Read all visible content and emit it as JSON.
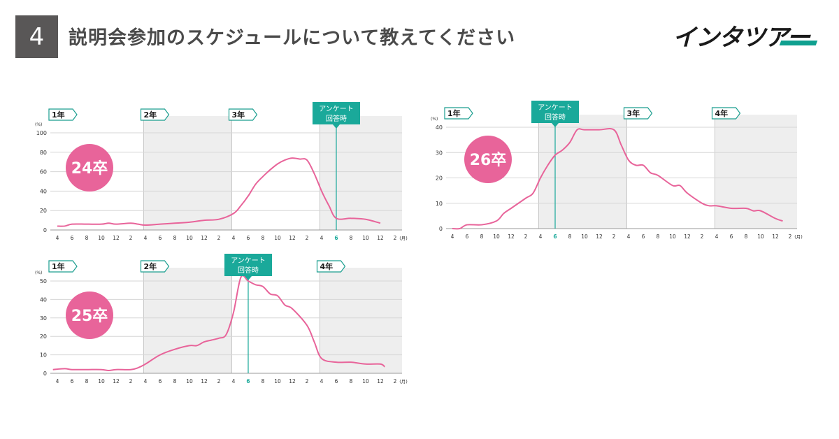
{
  "header": {
    "question_number": "4",
    "title": "説明会参加のスケジュールについて教えてください",
    "logo_text": "インタツアー"
  },
  "colors": {
    "line": "#e8649a",
    "badge": "#e8649a",
    "accent": "#1aa99a",
    "shade": "#eeeeee",
    "year_label": "#1a9e8f"
  },
  "chart_data": [
    {
      "type": "line",
      "cohort": "24卒",
      "y_unit": "(%)",
      "x_unit": "(月)",
      "ylim": [
        0,
        100
      ],
      "yticks": [
        0,
        20,
        40,
        60,
        80,
        100
      ],
      "x_months": [
        "4",
        "6",
        "8",
        "10",
        "12",
        "2",
        "4",
        "6",
        "8",
        "10",
        "12",
        "2",
        "4",
        "6",
        "8",
        "10",
        "12",
        "2",
        "4",
        "6",
        "8",
        "10",
        "12",
        "2"
      ],
      "highlight_tick": 19,
      "year_markers": [
        {
          "label": "1年",
          "tick": 0
        },
        {
          "label": "2年",
          "tick": 6
        },
        {
          "label": "3年",
          "tick": 12
        },
        {
          "label": "4年",
          "tick": 18
        }
      ],
      "survey_marker": {
        "label_1": "アンケート",
        "label_2": "回答時",
        "tick": 19
      },
      "shaded_years": [
        1,
        3
      ],
      "series": [
        {
          "x": [
            0,
            0.5,
            1,
            2,
            3,
            3.5,
            4,
            5,
            5.5,
            6,
            7,
            8,
            9,
            10,
            11,
            12,
            12.5,
            13,
            13.5,
            14,
            14.5,
            15,
            15.5,
            16,
            16.5,
            17,
            17.5,
            18,
            18.5,
            19,
            20,
            21,
            22
          ],
          "y": [
            4,
            4,
            6,
            6,
            6,
            7,
            6,
            7,
            6,
            5,
            6,
            7,
            8,
            10,
            11,
            17,
            25,
            35,
            47,
            55,
            62,
            68,
            72,
            74,
            73,
            72,
            58,
            40,
            25,
            12,
            12,
            11,
            7
          ]
        }
      ]
    },
    {
      "type": "line",
      "cohort": "25卒",
      "y_unit": "(%)",
      "x_unit": "(月)",
      "ylim": [
        0,
        50
      ],
      "yticks": [
        0,
        10,
        20,
        30,
        40,
        50
      ],
      "x_months": [
        "4",
        "6",
        "8",
        "10",
        "12",
        "2",
        "4",
        "6",
        "8",
        "10",
        "12",
        "2",
        "4",
        "6",
        "8",
        "10",
        "12",
        "2",
        "4",
        "6",
        "8",
        "10",
        "12",
        "2"
      ],
      "highlight_tick": 13,
      "year_markers": [
        {
          "label": "1年",
          "tick": 0
        },
        {
          "label": "2年",
          "tick": 6
        },
        {
          "label": "3年",
          "tick": 12
        },
        {
          "label": "4年",
          "tick": 18
        }
      ],
      "survey_marker": {
        "label_1": "アンケート",
        "label_2": "回答時",
        "tick": 13
      },
      "shaded_years": [
        1,
        3
      ],
      "series": [
        {
          "x": [
            -0.3,
            0.5,
            1,
            2,
            3,
            3.5,
            4,
            5,
            5.5,
            6,
            7,
            8,
            9,
            9.5,
            10,
            10.5,
            11,
            11.5,
            12,
            12.5,
            13,
            13.5,
            14,
            14.5,
            15,
            15.5,
            16,
            17,
            17.5,
            18,
            19,
            20,
            21,
            22,
            22.3
          ],
          "y": [
            2,
            2.5,
            2,
            2,
            2,
            1.5,
            2,
            2,
            3,
            5,
            10,
            13,
            15,
            15,
            17,
            18,
            19,
            21,
            33,
            52,
            50,
            48,
            47,
            43,
            42,
            37,
            35,
            26,
            17,
            8,
            6,
            6,
            5,
            5,
            3.5
          ]
        }
      ]
    },
    {
      "type": "line",
      "cohort": "26卒",
      "y_unit": "(%)",
      "x_unit": "(月)",
      "ylim": [
        0,
        40
      ],
      "yticks": [
        0,
        10,
        20,
        30,
        40
      ],
      "x_months": [
        "4",
        "6",
        "8",
        "10",
        "12",
        "2",
        "4",
        "6",
        "8",
        "10",
        "12",
        "2",
        "4",
        "6",
        "8",
        "10",
        "12",
        "2",
        "4",
        "6",
        "8",
        "10",
        "12",
        "2"
      ],
      "highlight_tick": 7,
      "year_markers": [
        {
          "label": "1年",
          "tick": 0
        },
        {
          "label": "2年",
          "tick": 6
        },
        {
          "label": "3年",
          "tick": 12
        },
        {
          "label": "4年",
          "tick": 18
        }
      ],
      "survey_marker": {
        "label_1": "アンケート",
        "label_2": "回答時",
        "tick": 7
      },
      "shaded_years": [
        1,
        3
      ],
      "series": [
        {
          "x": [
            0,
            0.5,
            1,
            2,
            3,
            3.5,
            4,
            5,
            5.5,
            6,
            6.5,
            7,
            7.5,
            8,
            8.5,
            9,
            10,
            11,
            11.5,
            12,
            12.5,
            13,
            13.5,
            14,
            15,
            15.5,
            16,
            17,
            17.5,
            18,
            19,
            20,
            20.5,
            21,
            22,
            22.5
          ],
          "y": [
            0,
            0,
            1.5,
            1.5,
            3,
            6,
            8,
            12,
            14,
            20,
            25,
            29,
            31,
            34,
            39,
            39,
            39,
            39,
            33,
            27,
            25,
            25,
            22,
            21,
            17,
            17,
            14,
            10,
            9,
            9,
            8,
            8,
            7,
            7,
            4,
            3
          ]
        }
      ]
    }
  ]
}
